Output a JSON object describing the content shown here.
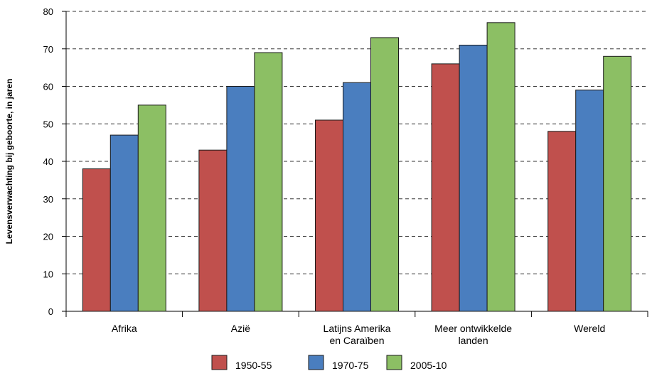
{
  "chart_data": {
    "type": "bar",
    "title": "",
    "xlabel": "",
    "ylabel": "Levensverwachting bij geboorte, in jaren",
    "ylim": [
      0,
      80
    ],
    "yticks": [
      0,
      10,
      20,
      30,
      40,
      50,
      60,
      70,
      80
    ],
    "grid": "dashed horizontal",
    "legend_position": "bottom",
    "categories": [
      [
        "Afrika"
      ],
      [
        "Azië"
      ],
      [
        "Latijns Amerika",
        "en Caraïben"
      ],
      [
        "Meer ontwikkelde",
        "landen"
      ],
      [
        "Wereld"
      ]
    ],
    "series": [
      {
        "name": "1950-55",
        "color": "#c0504d",
        "values": [
          38,
          43,
          51,
          66,
          48
        ]
      },
      {
        "name": "1970-75",
        "color": "#4a7ebf",
        "values": [
          47,
          60,
          61,
          71,
          59
        ]
      },
      {
        "name": "2005-10",
        "color": "#8cbf64",
        "values": [
          55,
          69,
          73,
          77,
          68
        ]
      }
    ]
  }
}
